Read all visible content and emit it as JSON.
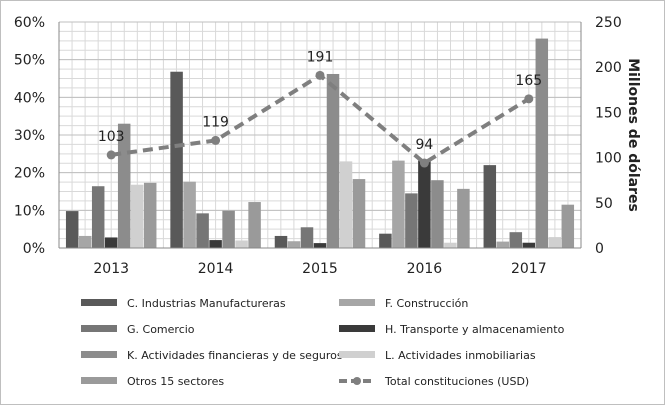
{
  "chart_data": {
    "type": "bar",
    "categories": [
      "2013",
      "2014",
      "2015",
      "2016",
      "2017"
    ],
    "y_left": {
      "ticks": [
        "0%",
        "10%",
        "20%",
        "30%",
        "40%",
        "50%",
        "60%"
      ],
      "ylim": [
        0,
        60
      ]
    },
    "y_right": {
      "ticks": [
        "0",
        "50",
        "100",
        "150",
        "200",
        "250"
      ],
      "ylim": [
        0,
        250
      ],
      "label": "Millones de dólares"
    },
    "series": [
      {
        "name": "C. Industrias Manufactureras",
        "values": [
          9.8,
          46.8,
          3.2,
          3.8,
          22.0
        ],
        "color": "#595959"
      },
      {
        "name": "F. Construcción",
        "values": [
          3.2,
          17.6,
          1.8,
          23.2,
          1.7
        ],
        "color": "#a6a6a6"
      },
      {
        "name": "G. Comercio",
        "values": [
          16.4,
          9.2,
          5.5,
          14.5,
          4.2
        ],
        "color": "#767676"
      },
      {
        "name": "H. Transporte y almacenamiento",
        "values": [
          2.8,
          2.1,
          1.3,
          23.2,
          1.4
        ],
        "color": "#3a3a3a"
      },
      {
        "name": "K. Actividades financieras y de seguros",
        "values": [
          33.0,
          9.9,
          46.2,
          18.0,
          55.6
        ],
        "color": "#8c8c8c"
      },
      {
        "name": "L. Actividades inmobiliarias",
        "values": [
          16.8,
          2.0,
          23.0,
          1.4,
          2.9
        ],
        "color": "#d0d0d0"
      },
      {
        "name": "Otros 15 sectores",
        "values": [
          17.3,
          12.2,
          18.3,
          15.7,
          11.5
        ],
        "color": "#9a9a9a"
      }
    ],
    "line": {
      "name": "Total constituciones (USD)",
      "values": [
        103,
        119,
        191,
        94,
        165
      ],
      "labels": [
        "103",
        "119",
        "191",
        "94",
        "165"
      ],
      "color": "#7f7f7f"
    },
    "grid": true,
    "legend_position": "bottom"
  }
}
